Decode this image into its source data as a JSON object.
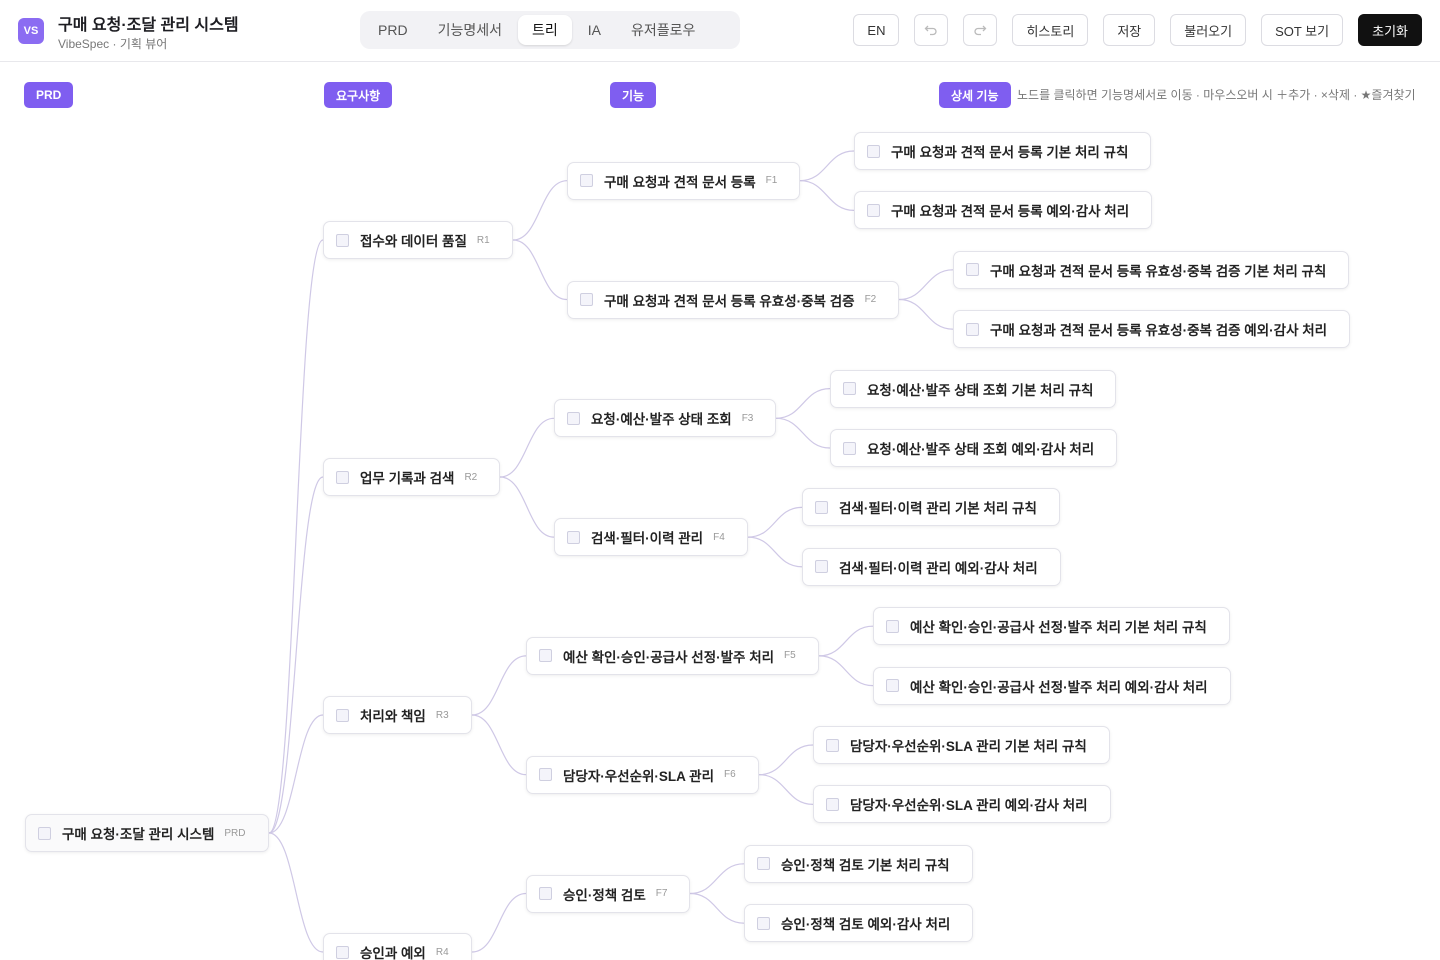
{
  "header": {
    "logo": "VS",
    "title": "구매 요청·조달 관리 시스템",
    "subtitle": "VibeSpec · 기획 뷰어"
  },
  "tabs": {
    "items": [
      "PRD",
      "기능명세서",
      "트리",
      "IA",
      "유저플로우"
    ],
    "active": 2
  },
  "toolbar": {
    "language": "EN",
    "buttons": [
      "히스토리",
      "저장",
      "불러오기",
      "SOT 보기"
    ],
    "reset": "초기화"
  },
  "columns": [
    "PRD",
    "요구사항",
    "기능",
    "상세 기능"
  ],
  "hint": "노드를 클릭하면 기능명세서로 이동 · 마우스오버 시 ＋추가 · ×삭제 · ★즐겨찾기",
  "tree": {
    "label": "구매 요청·조달 관리 시스템",
    "tag": "PRD",
    "children": [
      {
        "label": "접수와 데이터 품질",
        "tag": "R1",
        "children": [
          {
            "label": "구매 요청과 견적 문서 등록",
            "tag": "F1",
            "children": [
              {
                "label": "구매 요청과 견적 문서 등록 기본 처리 규칙"
              },
              {
                "label": "구매 요청과 견적 문서 등록 예외·감사 처리"
              }
            ]
          },
          {
            "label": "구매 요청과 견적 문서 등록 유효성·중복 검증",
            "tag": "F2",
            "children": [
              {
                "label": "구매 요청과 견적 문서 등록 유효성·중복 검증 기본 처리 규칙"
              },
              {
                "label": "구매 요청과 견적 문서 등록 유효성·중복 검증 예외·감사 처리"
              }
            ]
          }
        ]
      },
      {
        "label": "업무 기록과 검색",
        "tag": "R2",
        "children": [
          {
            "label": "요청·예산·발주 상태 조회",
            "tag": "F3",
            "children": [
              {
                "label": "요청·예산·발주 상태 조회 기본 처리 규칙"
              },
              {
                "label": "요청·예산·발주 상태 조회 예외·감사 처리"
              }
            ]
          },
          {
            "label": "검색·필터·이력 관리",
            "tag": "F4",
            "children": [
              {
                "label": "검색·필터·이력 관리 기본 처리 규칙"
              },
              {
                "label": "검색·필터·이력 관리 예외·감사 처리"
              }
            ]
          }
        ]
      },
      {
        "label": "처리와 책임",
        "tag": "R3",
        "children": [
          {
            "label": "예산 확인·승인·공급사 선정·발주 처리",
            "tag": "F5",
            "children": [
              {
                "label": "예산 확인·승인·공급사 선정·발주 처리 기본 처리 규칙"
              },
              {
                "label": "예산 확인·승인·공급사 선정·발주 처리 예외·감사 처리"
              }
            ]
          },
          {
            "label": "담당자·우선순위·SLA 관리",
            "tag": "F6",
            "children": [
              {
                "label": "담당자·우선순위·SLA 관리 기본 처리 규칙"
              },
              {
                "label": "담당자·우선순위·SLA 관리 예외·감사 처리"
              }
            ]
          }
        ]
      },
      {
        "label": "승인과 예외",
        "tag": "R4",
        "children": [
          {
            "label": "승인·정책 검토",
            "tag": "F7",
            "children": [
              {
                "label": "승인·정책 검토 기본 처리 규칙"
              },
              {
                "label": "승인·정책 검토 예외·감사 처리"
              }
            ]
          }
        ]
      }
    ]
  }
}
